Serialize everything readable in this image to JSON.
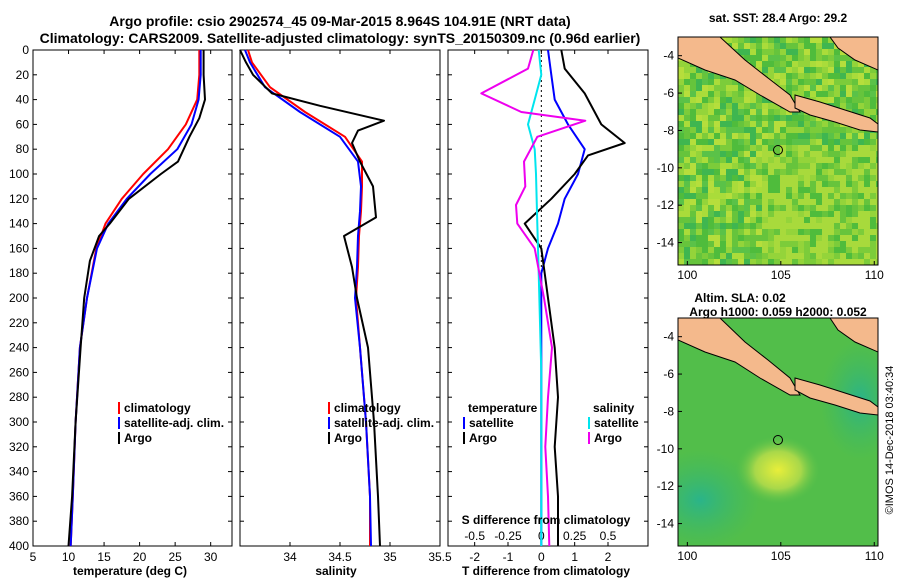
{
  "title_line1": "Argo profile: csio 2902574_45 09-Mar-2015 8.964S 104.91E (NRT data)",
  "title_line2": "Climatology: CARS2009. Satellite-adjusted climatology: synTS_20150309.nc (0.96d earlier)",
  "watermark": "©IMOS 14-Dec-2018 03:40:34",
  "colors": {
    "climatology": "#ff0000",
    "satellite": "#0000ff",
    "argo": "#000000",
    "sat_salinity": "#00e5ee",
    "argo_salinity": "#ee00ee"
  },
  "chart_data": [
    {
      "id": "temperature",
      "type": "line",
      "xlabel": "temperature (deg C)",
      "ylabel": "depth",
      "xlim": [
        5,
        33
      ],
      "ylim": [
        400,
        0
      ],
      "xticks": [
        5,
        10,
        15,
        20,
        25,
        30
      ],
      "yticks": [
        0,
        20,
        40,
        60,
        80,
        100,
        120,
        140,
        160,
        180,
        200,
        220,
        240,
        260,
        280,
        300,
        320,
        340,
        360,
        380,
        400
      ],
      "legend": [
        "climatology",
        "satellite-adj. clim.",
        "Argo"
      ],
      "series": [
        {
          "name": "climatology",
          "color": "#ff0000",
          "depth": [
            0,
            20,
            40,
            60,
            80,
            100,
            120,
            140,
            160,
            200,
            240,
            300,
            360,
            400
          ],
          "values": [
            28.4,
            28.4,
            28.1,
            26.5,
            24.0,
            20.5,
            17.5,
            15.2,
            13.9,
            12.6,
            11.6,
            11.0,
            10.6,
            10.3
          ]
        },
        {
          "name": "satellite-adj. clim.",
          "color": "#0000ff",
          "depth": [
            0,
            20,
            40,
            60,
            80,
            100,
            120,
            140,
            160,
            200,
            240,
            300,
            360,
            400
          ],
          "values": [
            28.6,
            28.6,
            28.3,
            27.3,
            25.3,
            21.5,
            18.2,
            15.6,
            14.0,
            12.6,
            11.6,
            11.0,
            10.6,
            10.3
          ]
        },
        {
          "name": "Argo",
          "color": "#000000",
          "depth": [
            0,
            20,
            40,
            55,
            70,
            90,
            100,
            120,
            140,
            150,
            170,
            200,
            240,
            300,
            360,
            400
          ],
          "values": [
            29.0,
            29.0,
            29.2,
            28.4,
            27.0,
            25.4,
            23.0,
            18.5,
            15.8,
            14.3,
            13.0,
            12.2,
            11.7,
            11.0,
            10.5,
            10.0
          ]
        }
      ]
    },
    {
      "id": "salinity",
      "type": "line",
      "xlabel": "salinity",
      "xlim": [
        33.5,
        35.5
      ],
      "ylim": [
        400,
        0
      ],
      "xticks": [
        34,
        34.5,
        35,
        35.5
      ],
      "xticklabels": [
        "34",
        "34.5",
        "35",
        "35.5"
      ],
      "legend": [
        "climatology",
        "satellite-adj. clim.",
        "Argo"
      ],
      "series": [
        {
          "name": "climatology",
          "color": "#ff0000",
          "depth": [
            0,
            10,
            30,
            50,
            70,
            90,
            110,
            130,
            150,
            175,
            200,
            240,
            300,
            360,
            400
          ],
          "values": [
            33.58,
            33.62,
            33.8,
            34.15,
            34.55,
            34.72,
            34.72,
            34.71,
            34.69,
            34.68,
            34.66,
            34.7,
            34.76,
            34.8,
            34.8
          ]
        },
        {
          "name": "satellite-adj. clim.",
          "color": "#0000ff",
          "depth": [
            0,
            10,
            30,
            50,
            70,
            90,
            110,
            130,
            150,
            175,
            200,
            240,
            300,
            360,
            400
          ],
          "values": [
            33.55,
            33.6,
            33.75,
            34.1,
            34.5,
            34.68,
            34.71,
            34.7,
            34.68,
            34.67,
            34.65,
            34.7,
            34.76,
            34.8,
            34.81
          ]
        },
        {
          "name": "Argo",
          "color": "#000000",
          "depth": [
            0,
            10,
            20,
            35,
            45,
            57,
            65,
            75,
            90,
            110,
            135,
            150,
            175,
            200,
            240,
            300,
            360,
            400
          ],
          "values": [
            33.5,
            33.56,
            33.63,
            33.82,
            34.3,
            34.94,
            34.68,
            34.62,
            34.7,
            34.83,
            34.86,
            34.54,
            34.62,
            34.67,
            34.78,
            34.84,
            34.88,
            34.9
          ]
        }
      ]
    },
    {
      "id": "difference",
      "type": "line",
      "xlabel": "T difference from climatology",
      "xlabel_top": "S difference from climatology",
      "xlim": [
        -2.8,
        3.2
      ],
      "ylim": [
        400,
        0
      ],
      "xticks": [
        -2,
        -1,
        0,
        1,
        2
      ],
      "xticks_top": [
        -0.5,
        -0.25,
        0,
        0.25,
        0.5
      ],
      "xticklabels_top": [
        "-0.5",
        "-0.25",
        "0",
        "0.25",
        "0.5"
      ],
      "legend_left_title": "temperature",
      "legend_right_title": "salinity",
      "legend_left": [
        "satellite",
        "Argo"
      ],
      "legend_right": [
        "satellite",
        "Argo"
      ],
      "series": [
        {
          "name": "T satellite",
          "color": "#0000ff",
          "depth": [
            0,
            20,
            40,
            60,
            80,
            100,
            120,
            140,
            160,
            180,
            200,
            240,
            300,
            360,
            400
          ],
          "values": [
            0.2,
            0.3,
            0.4,
            0.8,
            1.3,
            1.1,
            0.7,
            0.5,
            0.2,
            0.0,
            0.0,
            0.0,
            0.0,
            0.0,
            0.0
          ]
        },
        {
          "name": "T Argo",
          "color": "#000000",
          "depth": [
            0,
            15,
            35,
            60,
            75,
            85,
            100,
            120,
            140,
            160,
            180,
            200,
            240,
            280,
            320,
            360,
            400
          ],
          "values": [
            0.6,
            0.7,
            1.3,
            1.8,
            2.5,
            1.4,
            1.0,
            0.3,
            -0.5,
            0.0,
            0.1,
            0.2,
            0.4,
            0.5,
            0.4,
            0.5,
            0.5
          ]
        },
        {
          "name": "S satellite",
          "color": "#00e5ee",
          "depth": [
            0,
            20,
            40,
            60,
            80,
            100,
            140,
            180,
            220,
            260,
            300,
            340,
            380,
            400
          ],
          "values": [
            -0.02,
            0.0,
            -0.05,
            -0.1,
            -0.05,
            -0.04,
            -0.03,
            -0.02,
            -0.01,
            0.0,
            0.0,
            0.0,
            0.0,
            0.0
          ]
        },
        {
          "name": "S Argo",
          "color": "#ee00ee",
          "depth": [
            0,
            15,
            35,
            50,
            57,
            70,
            90,
            110,
            125,
            140,
            160,
            200,
            240,
            280,
            320,
            360,
            400
          ],
          "values": [
            -0.06,
            -0.1,
            -0.45,
            -0.15,
            0.33,
            -0.03,
            -0.13,
            -0.12,
            -0.19,
            -0.18,
            -0.05,
            0.02,
            0.08,
            0.05,
            0.03,
            0.05,
            0.06
          ]
        }
      ]
    },
    {
      "id": "sst_map",
      "type": "heatmap",
      "title": "sat. SST: 28.4 Argo: 29.2",
      "xlim": [
        99.5,
        110.2
      ],
      "ylim": [
        -15.2,
        -3
      ],
      "xticks": [
        100,
        105,
        110
      ],
      "yticks": [
        -4,
        -6,
        -8,
        -10,
        -12,
        -14
      ],
      "argo_position": [
        104.91,
        -8.964
      ]
    },
    {
      "id": "sla_map",
      "type": "heatmap",
      "title": "Altim. SLA: 0.02",
      "subtitle": "Argo h1000: 0.059 h2000: 0.052",
      "xlim": [
        99.5,
        110.2
      ],
      "ylim": [
        -15.2,
        -3
      ],
      "xticks": [
        100,
        105,
        110
      ],
      "yticks": [
        -4,
        -6,
        -8,
        -10,
        -12,
        -14
      ],
      "argo_position": [
        104.91,
        -8.964
      ]
    }
  ]
}
